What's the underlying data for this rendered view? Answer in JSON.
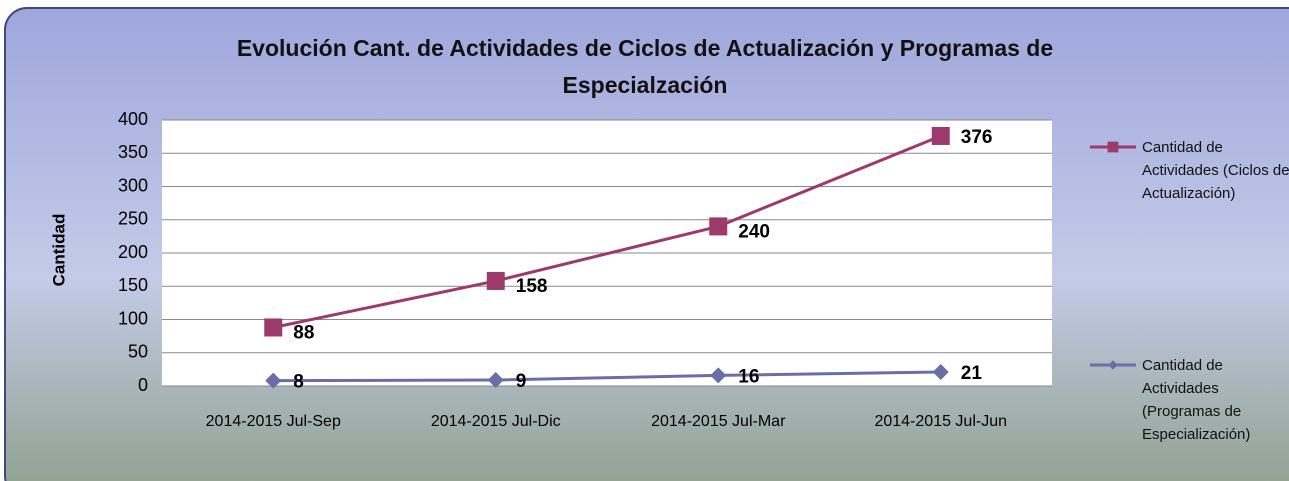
{
  "chart_data": {
    "type": "line",
    "title": "Evolución Cant. de Actividades de Ciclos de Actualización y Programas de Especialzación",
    "y_label": "Cantidad",
    "categories": [
      "2014-2015 Jul-Sep",
      "2014-2015 Jul-Dic",
      "2014-2015 Jul-Mar",
      "2014-2015 Jul-Jun"
    ],
    "series": [
      {
        "name": "Cantidad de Actividades (Ciclos de Actualización)",
        "color": "#9c3b6b",
        "marker": "square",
        "values": [
          88,
          158,
          240,
          376
        ]
      },
      {
        "name": "Cantidad de Actividades (Programas de Especialización)",
        "color": "#6a6ea8",
        "marker": "diamond",
        "values": [
          8,
          9,
          16,
          21
        ]
      }
    ],
    "ylim": [
      0,
      400
    ],
    "yticks": [
      0,
      50,
      100,
      150,
      200,
      250,
      300,
      350,
      400
    ],
    "grid": true,
    "legend": "right"
  }
}
